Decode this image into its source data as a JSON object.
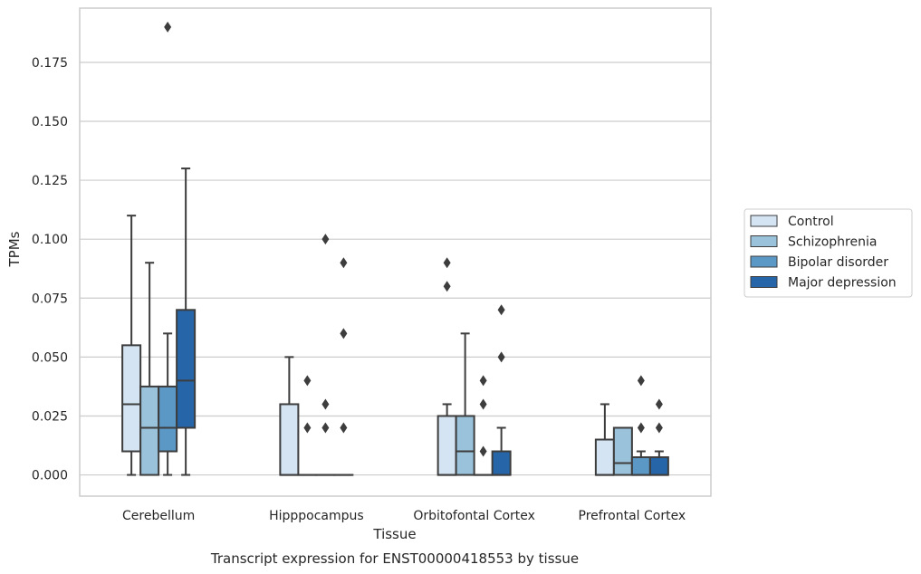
{
  "chart_data": {
    "type": "box",
    "title": "Transcript expression for ENST00000418553 by tissue",
    "xlabel": "Tissue",
    "ylabel": "TPMs",
    "ylim": [
      -0.009,
      0.198
    ],
    "yticks": [
      0.0,
      0.025,
      0.05,
      0.075,
      0.1,
      0.125,
      0.15,
      0.175
    ],
    "ytick_labels": [
      "0.000",
      "0.025",
      "0.050",
      "0.075",
      "0.100",
      "0.125",
      "0.150",
      "0.175"
    ],
    "grid": "horizontal",
    "legend_position": "right",
    "categories": [
      "Cerebellum",
      "Hipppocampus",
      "Orbitofontal Cortex",
      "Prefrontal Cortex"
    ],
    "series": [
      {
        "name": "Control",
        "color": "#d4e4f2",
        "boxes": [
          {
            "whislo": 0.0,
            "q1": 0.01,
            "med": 0.03,
            "q3": 0.055,
            "whishi": 0.11,
            "fliers": []
          },
          {
            "whislo": 0.0,
            "q1": 0.0,
            "med": 0.0,
            "q3": 0.03,
            "whishi": 0.05,
            "fliers": []
          },
          {
            "whislo": 0.0,
            "q1": 0.0,
            "med": 0.0,
            "q3": 0.025,
            "whishi": 0.03,
            "fliers": [
              0.08,
              0.09
            ]
          },
          {
            "whislo": 0.0,
            "q1": 0.0,
            "med": 0.0,
            "q3": 0.015,
            "whishi": 0.03,
            "fliers": []
          }
        ]
      },
      {
        "name": "Schizophrenia",
        "color": "#9ac2db",
        "boxes": [
          {
            "whislo": 0.0,
            "q1": 0.0,
            "med": 0.02,
            "q3": 0.0375,
            "whishi": 0.09,
            "fliers": []
          },
          {
            "whislo": 0.0,
            "q1": 0.0,
            "med": 0.0,
            "q3": 0.0,
            "whishi": 0.0,
            "fliers": [
              0.02,
              0.04
            ]
          },
          {
            "whislo": 0.0,
            "q1": 0.0,
            "med": 0.01,
            "q3": 0.025,
            "whishi": 0.06,
            "fliers": []
          },
          {
            "whislo": 0.0,
            "q1": 0.0,
            "med": 0.005,
            "q3": 0.02,
            "whishi": 0.02,
            "fliers": []
          }
        ]
      },
      {
        "name": "Bipolar disorder",
        "color": "#5b98c5",
        "boxes": [
          {
            "whislo": 0.0,
            "q1": 0.01,
            "med": 0.02,
            "q3": 0.0375,
            "whishi": 0.06,
            "fliers": [
              0.19
            ]
          },
          {
            "whislo": 0.0,
            "q1": 0.0,
            "med": 0.0,
            "q3": 0.0,
            "whishi": 0.0,
            "fliers": [
              0.02,
              0.03,
              0.1
            ]
          },
          {
            "whislo": 0.0,
            "q1": 0.0,
            "med": 0.0,
            "q3": 0.0,
            "whishi": 0.0,
            "fliers": [
              0.01,
              0.03,
              0.04
            ]
          },
          {
            "whislo": 0.0,
            "q1": 0.0,
            "med": 0.0,
            "q3": 0.0075,
            "whishi": 0.01,
            "fliers": [
              0.02,
              0.04
            ]
          }
        ]
      },
      {
        "name": "Major depression",
        "color": "#2565a8",
        "boxes": [
          {
            "whislo": 0.0,
            "q1": 0.02,
            "med": 0.04,
            "q3": 0.07,
            "whishi": 0.13,
            "fliers": []
          },
          {
            "whislo": 0.0,
            "q1": 0.0,
            "med": 0.0,
            "q3": 0.0,
            "whishi": 0.0,
            "fliers": [
              0.02,
              0.06,
              0.09
            ]
          },
          {
            "whislo": 0.0,
            "q1": 0.0,
            "med": 0.0,
            "q3": 0.01,
            "whishi": 0.02,
            "fliers": [
              0.05,
              0.07
            ]
          },
          {
            "whislo": 0.0,
            "q1": 0.0,
            "med": 0.0,
            "q3": 0.0075,
            "whishi": 0.01,
            "fliers": [
              0.02,
              0.03
            ]
          }
        ]
      }
    ]
  }
}
